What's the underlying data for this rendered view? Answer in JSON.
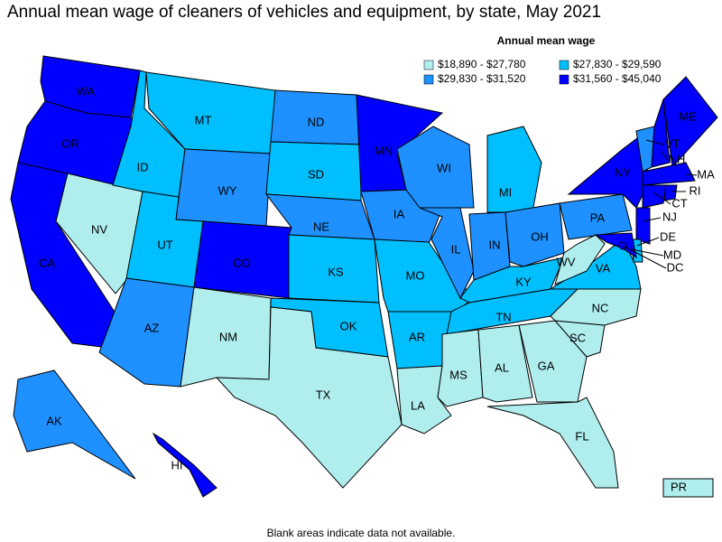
{
  "title": "Annual mean wage of cleaners of vehicles and equipment, by state, May 2021",
  "legend": {
    "title": "Annual mean wage",
    "items": [
      {
        "label": "$18,890 - $27,780",
        "color": "#b0eeee"
      },
      {
        "label": "$27,830 - $29,590",
        "color": "#00bfff"
      },
      {
        "label": "$29,830 - $31,520",
        "color": "#1e90ff"
      },
      {
        "label": "$31,560 - $45,040",
        "color": "#0000ff"
      }
    ]
  },
  "states": [
    {
      "abbr": "WA",
      "bin": 3
    },
    {
      "abbr": "OR",
      "bin": 3
    },
    {
      "abbr": "CA",
      "bin": 3
    },
    {
      "abbr": "NV",
      "bin": 0
    },
    {
      "abbr": "ID",
      "bin": 1
    },
    {
      "abbr": "MT",
      "bin": 1
    },
    {
      "abbr": "WY",
      "bin": 2
    },
    {
      "abbr": "UT",
      "bin": 1
    },
    {
      "abbr": "CO",
      "bin": 3
    },
    {
      "abbr": "AZ",
      "bin": 2
    },
    {
      "abbr": "NM",
      "bin": 0
    },
    {
      "abbr": "ND",
      "bin": 2
    },
    {
      "abbr": "SD",
      "bin": 1
    },
    {
      "abbr": "NE",
      "bin": 2
    },
    {
      "abbr": "KS",
      "bin": 1
    },
    {
      "abbr": "OK",
      "bin": 1
    },
    {
      "abbr": "TX",
      "bin": 0
    },
    {
      "abbr": "MN",
      "bin": 3
    },
    {
      "abbr": "IA",
      "bin": 2
    },
    {
      "abbr": "MO",
      "bin": 1
    },
    {
      "abbr": "AR",
      "bin": 1
    },
    {
      "abbr": "LA",
      "bin": 0
    },
    {
      "abbr": "WI",
      "bin": 2
    },
    {
      "abbr": "IL",
      "bin": 2
    },
    {
      "abbr": "MI",
      "bin": 1
    },
    {
      "abbr": "IN",
      "bin": 2
    },
    {
      "abbr": "OH",
      "bin": 2
    },
    {
      "abbr": "KY",
      "bin": 1
    },
    {
      "abbr": "TN",
      "bin": 1
    },
    {
      "abbr": "MS",
      "bin": 0
    },
    {
      "abbr": "AL",
      "bin": 0
    },
    {
      "abbr": "GA",
      "bin": 0
    },
    {
      "abbr": "FL",
      "bin": 0
    },
    {
      "abbr": "SC",
      "bin": 0
    },
    {
      "abbr": "NC",
      "bin": 0
    },
    {
      "abbr": "VA",
      "bin": 1
    },
    {
      "abbr": "WV",
      "bin": 0
    },
    {
      "abbr": "PA",
      "bin": 2
    },
    {
      "abbr": "NY",
      "bin": 3
    },
    {
      "abbr": "VT",
      "bin": 2
    },
    {
      "abbr": "NH",
      "bin": 3
    },
    {
      "abbr": "ME",
      "bin": 3
    },
    {
      "abbr": "MA",
      "bin": 3
    },
    {
      "abbr": "CT",
      "bin": 3
    },
    {
      "abbr": "RI",
      "bin": 3
    },
    {
      "abbr": "NJ",
      "bin": 3
    },
    {
      "abbr": "DE",
      "bin": 1
    },
    {
      "abbr": "MD",
      "bin": 3
    },
    {
      "abbr": "DC",
      "bin": 3
    },
    {
      "abbr": "AK",
      "bin": 2
    },
    {
      "abbr": "HI",
      "bin": 3
    },
    {
      "abbr": "PR",
      "bin": 0
    }
  ],
  "footnote": "Blank areas indicate data not available."
}
